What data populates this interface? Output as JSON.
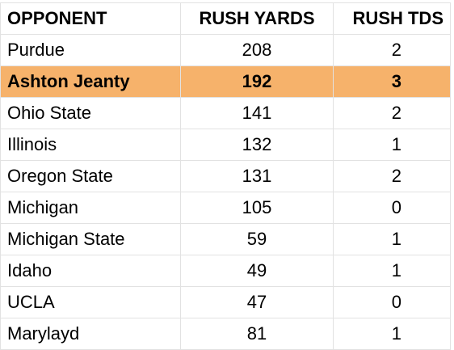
{
  "table": {
    "headers": [
      "OPPONENT",
      "RUSH YARDS",
      "RUSH TDS"
    ],
    "rows": [
      {
        "opponent": "Purdue",
        "rush_yards": "208",
        "rush_tds": "2"
      },
      {
        "opponent": "Ashton Jeanty",
        "rush_yards": "192",
        "rush_tds": "3"
      },
      {
        "opponent": "Ohio State",
        "rush_yards": "141",
        "rush_tds": "2"
      },
      {
        "opponent": "Illinois",
        "rush_yards": "132",
        "rush_tds": "1"
      },
      {
        "opponent": "Oregon State",
        "rush_yards": "131",
        "rush_tds": "2"
      },
      {
        "opponent": "Michigan",
        "rush_yards": "105",
        "rush_tds": "0"
      },
      {
        "opponent": "Michigan State",
        "rush_yards": "59",
        "rush_tds": "1"
      },
      {
        "opponent": "Idaho",
        "rush_yards": "49",
        "rush_tds": "1"
      },
      {
        "opponent": "UCLA",
        "rush_yards": "47",
        "rush_tds": "0"
      },
      {
        "opponent": "Marylayd",
        "rush_yards": "81",
        "rush_tds": "1"
      }
    ]
  },
  "colors": {
    "highlight_row": "#f6b26b",
    "gridline": "#e2e2e2"
  }
}
